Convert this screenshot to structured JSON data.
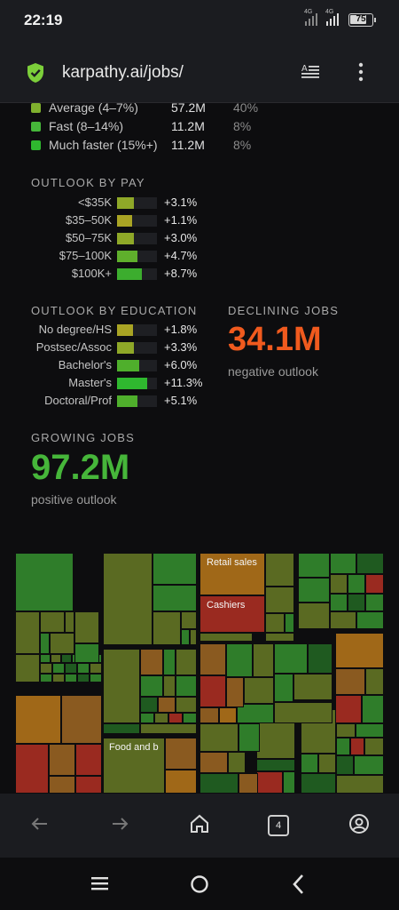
{
  "status": {
    "time": "22:19",
    "signal1": "4G",
    "signal2": "4G",
    "battery": "75",
    "battery_level": 0.75
  },
  "browser": {
    "url": "karpathy.ai/jobs/",
    "tab_count": "4"
  },
  "speed_table": [
    {
      "label": "Average (4–7%)",
      "value": "57.2M",
      "pct": "40%",
      "color": "#7fb02e"
    },
    {
      "label": "Fast (8–14%)",
      "value": "11.2M",
      "pct": "8%",
      "color": "#46b63a"
    },
    {
      "label": "Much faster (15%+)",
      "value": "11.2M",
      "pct": "8%",
      "color": "#2fb82f"
    }
  ],
  "outlook_pay": {
    "title": "OUTLOOK BY PAY",
    "rows": [
      {
        "label": "<$35K",
        "value": "+3.1%",
        "level": 0.42,
        "color": "#8fa828"
      },
      {
        "label": "$35–50K",
        "value": "+1.1%",
        "level": 0.38,
        "color": "#a9a424"
      },
      {
        "label": "$50–75K",
        "value": "+3.0%",
        "level": 0.42,
        "color": "#8fa828"
      },
      {
        "label": "$75–100K",
        "value": "+4.7%",
        "level": 0.52,
        "color": "#5faf2c"
      },
      {
        "label": "$100K+",
        "value": "+8.7%",
        "level": 0.62,
        "color": "#3cad2e"
      }
    ]
  },
  "outlook_education": {
    "title": "OUTLOOK BY EDUCATION",
    "rows": [
      {
        "label": "No degree/HS",
        "value": "+1.8%",
        "level": 0.4,
        "color": "#a9a424"
      },
      {
        "label": "Postsec/Assoc",
        "value": "+3.3%",
        "level": 0.42,
        "color": "#8fa828"
      },
      {
        "label": "Bachelor's",
        "value": "+6.0%",
        "level": 0.55,
        "color": "#4faf2c"
      },
      {
        "label": "Master's",
        "value": "+11.3%",
        "level": 0.75,
        "color": "#2fb82f"
      },
      {
        "label": "Doctoral/Prof",
        "value": "+5.1%",
        "level": 0.52,
        "color": "#4faf2c"
      }
    ]
  },
  "declining": {
    "title": "DECLINING JOBS",
    "value": "34.1M",
    "sub": "negative outlook"
  },
  "growing": {
    "title": "GROWING JOBS",
    "value": "97.2M",
    "sub": "positive outlook"
  },
  "treemap": {
    "labels": {
      "retail": "Retail sales",
      "cashiers": "Cashiers",
      "food": "Food and b"
    },
    "colors": {
      "green": "#2f7d2a",
      "olive": "#5a6a22",
      "brown": "#8a5a20",
      "red": "#9a2a20",
      "darkgreen": "#1f5a20",
      "amber": "#a06818"
    }
  }
}
